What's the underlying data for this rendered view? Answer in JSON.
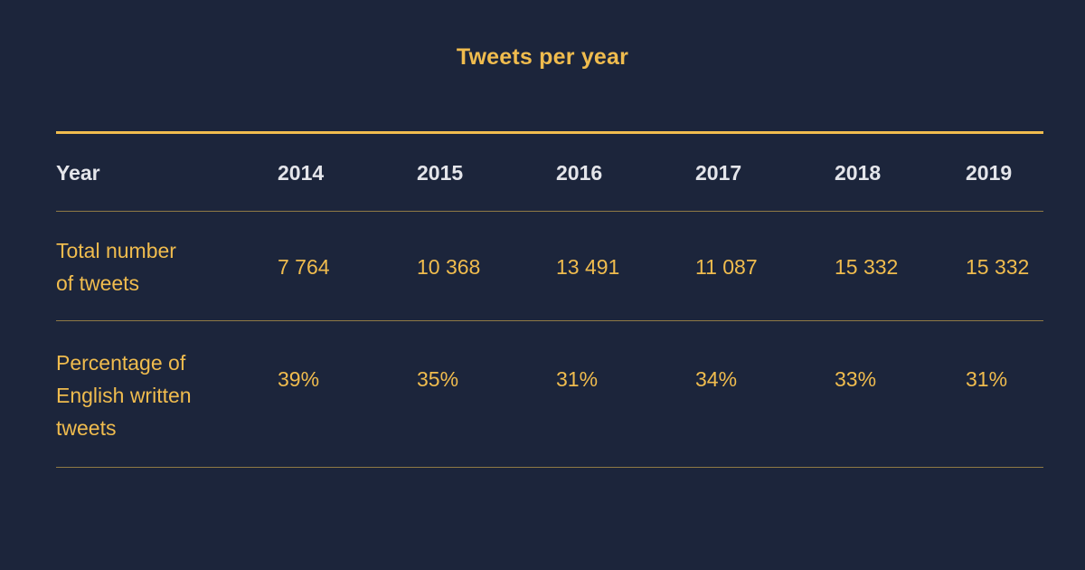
{
  "chart_data": {
    "type": "table",
    "title": "Tweets per year",
    "header_label": "Year",
    "columns": [
      "2014",
      "2015",
      "2016",
      "2017",
      "2018",
      "2019"
    ],
    "rows": [
      {
        "label": "Total number of tweets",
        "label_lines": [
          "Total number",
          "of tweets"
        ],
        "values": [
          "7 764",
          "10 368",
          "13 491",
          "11 087",
          "15 332",
          "15 332"
        ]
      },
      {
        "label": "Percentage of English written tweets",
        "label_lines": [
          "Percentage of",
          "English written",
          "tweets"
        ],
        "values": [
          "39%",
          "35%",
          "31%",
          "34%",
          "33%",
          "31%"
        ]
      }
    ],
    "colors": {
      "background": "#1c253b",
      "accent": "#f0bc4e",
      "header_text": "#e4e5ea",
      "divider": "#8f7a45"
    }
  }
}
